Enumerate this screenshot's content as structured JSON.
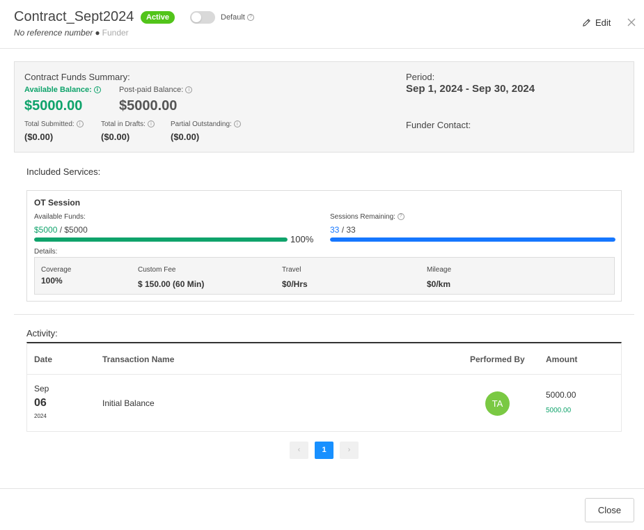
{
  "header": {
    "title": "Contract_Sept2024",
    "status_badge": "Active",
    "default_label": "Default",
    "reference": "No reference number",
    "separator": "●",
    "funder": "Funder",
    "edit_label": "Edit"
  },
  "summary": {
    "heading": "Contract Funds Summary:",
    "available_label": "Available Balance:",
    "available_value": "$5000.00",
    "postpaid_label": "Post-paid Balance:",
    "postpaid_value": "$5000.00",
    "total_submitted_label": "Total Submitted:",
    "total_submitted_value": "($0.00)",
    "total_drafts_label": "Total in Drafts:",
    "total_drafts_value": "($0.00)",
    "partial_label": "Partial Outstanding:",
    "partial_value": "($0.00)",
    "period_label": "Period:",
    "period_value": "Sep 1, 2024 - Sep 30, 2024",
    "funder_contact_label": "Funder Contact:"
  },
  "included_services_label": "Included Services:",
  "service": {
    "name": "OT Session",
    "available_funds_label": "Available Funds:",
    "available_funds_current": "$5000",
    "available_funds_total": "/ $5000",
    "funds_fraction": 1.0,
    "funds_percent_text": "100%",
    "sessions_label": "Sessions Remaining:",
    "sessions_current": "33",
    "sessions_total": "/ 33",
    "sessions_fraction": 1.0,
    "details_label": "Details:",
    "details": {
      "coverage_label": "Coverage",
      "coverage_value": "100%",
      "custom_fee_label": "Custom Fee",
      "custom_fee_value": "$ 150.00 (60 Min)",
      "travel_label": "Travel",
      "travel_value": "$0/Hrs",
      "mileage_label": "Mileage",
      "mileage_value": "$0/km"
    }
  },
  "activity": {
    "label": "Activity:",
    "columns": [
      "Date",
      "Transaction Name",
      "Performed By",
      "Amount"
    ],
    "rows": [
      {
        "month": "Sep",
        "day": "06",
        "year": "2024",
        "name": "Initial Balance",
        "performer_initials": "TA",
        "amount": "5000.00",
        "balance": "5000.00"
      }
    ]
  },
  "pagination": {
    "prev": "‹",
    "current": "1",
    "next": "›"
  },
  "footer": {
    "close_label": "Close"
  },
  "colors": {
    "accent_green": "#0fa36b",
    "badge_green": "#52c41a",
    "blue": "#1677ff",
    "avatar_green": "#7ac943"
  }
}
